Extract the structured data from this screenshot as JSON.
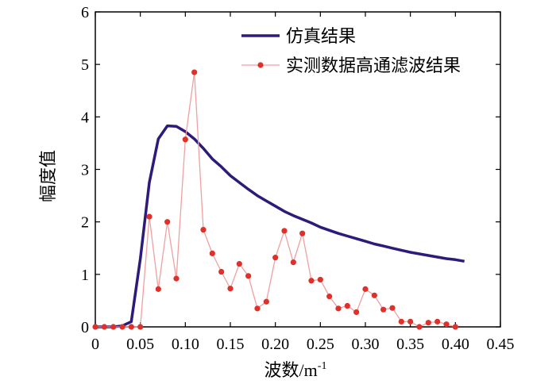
{
  "chart_data": {
    "type": "line",
    "xlabel": "波数/m",
    "xlabel_sup": "-1",
    "ylabel": "幅度值",
    "xlim": [
      0,
      0.45
    ],
    "ylim": [
      0,
      6
    ],
    "x_ticks": [
      "0",
      "0.05",
      "0.10",
      "0.15",
      "0.20",
      "0.25",
      "0.30",
      "0.35",
      "0.40",
      "0.45"
    ],
    "y_ticks": [
      "0",
      "1",
      "2",
      "3",
      "4",
      "5",
      "6"
    ],
    "grid": false,
    "legend_position": "top-right",
    "series": [
      {
        "name": "仿真结果",
        "color": "#2e1a7a",
        "style": "line",
        "x": [
          0,
          0.01,
          0.02,
          0.03,
          0.04,
          0.05,
          0.06,
          0.07,
          0.08,
          0.09,
          0.1,
          0.11,
          0.12,
          0.13,
          0.14,
          0.15,
          0.16,
          0.17,
          0.18,
          0.19,
          0.2,
          0.21,
          0.22,
          0.23,
          0.24,
          0.25,
          0.26,
          0.27,
          0.28,
          0.29,
          0.3,
          0.31,
          0.32,
          0.33,
          0.34,
          0.35,
          0.36,
          0.37,
          0.38,
          0.39,
          0.4,
          0.41
        ],
        "y": [
          0,
          0,
          0,
          0.02,
          0.1,
          1.3,
          2.75,
          3.58,
          3.83,
          3.82,
          3.72,
          3.58,
          3.4,
          3.2,
          3.05,
          2.88,
          2.75,
          2.62,
          2.5,
          2.4,
          2.3,
          2.2,
          2.12,
          2.05,
          1.98,
          1.9,
          1.84,
          1.78,
          1.73,
          1.68,
          1.63,
          1.58,
          1.54,
          1.5,
          1.46,
          1.42,
          1.39,
          1.36,
          1.33,
          1.3,
          1.28,
          1.25
        ]
      },
      {
        "name": "实测数据高通滤波结果",
        "color": "#f0a0a0",
        "marker_color": "#e0302a",
        "style": "line-marker",
        "x": [
          0,
          0.01,
          0.02,
          0.03,
          0.04,
          0.05,
          0.06,
          0.07,
          0.08,
          0.09,
          0.1,
          0.11,
          0.12,
          0.13,
          0.14,
          0.15,
          0.16,
          0.17,
          0.18,
          0.19,
          0.2,
          0.21,
          0.22,
          0.23,
          0.24,
          0.25,
          0.26,
          0.27,
          0.28,
          0.29,
          0.3,
          0.31,
          0.32,
          0.33,
          0.34,
          0.35,
          0.36,
          0.37,
          0.38,
          0.39,
          0.4
        ],
        "y": [
          0,
          0,
          0,
          0,
          0,
          0,
          2.1,
          0.72,
          2.0,
          0.92,
          3.57,
          4.85,
          1.85,
          1.4,
          1.05,
          0.73,
          1.2,
          0.97,
          0.35,
          0.48,
          1.32,
          1.83,
          1.23,
          1.78,
          0.88,
          0.9,
          0.58,
          0.35,
          0.4,
          0.28,
          0.72,
          0.6,
          0.33,
          0.36,
          0.1,
          0.1,
          0.0,
          0.08,
          0.1,
          0.05,
          0.0
        ]
      }
    ]
  }
}
